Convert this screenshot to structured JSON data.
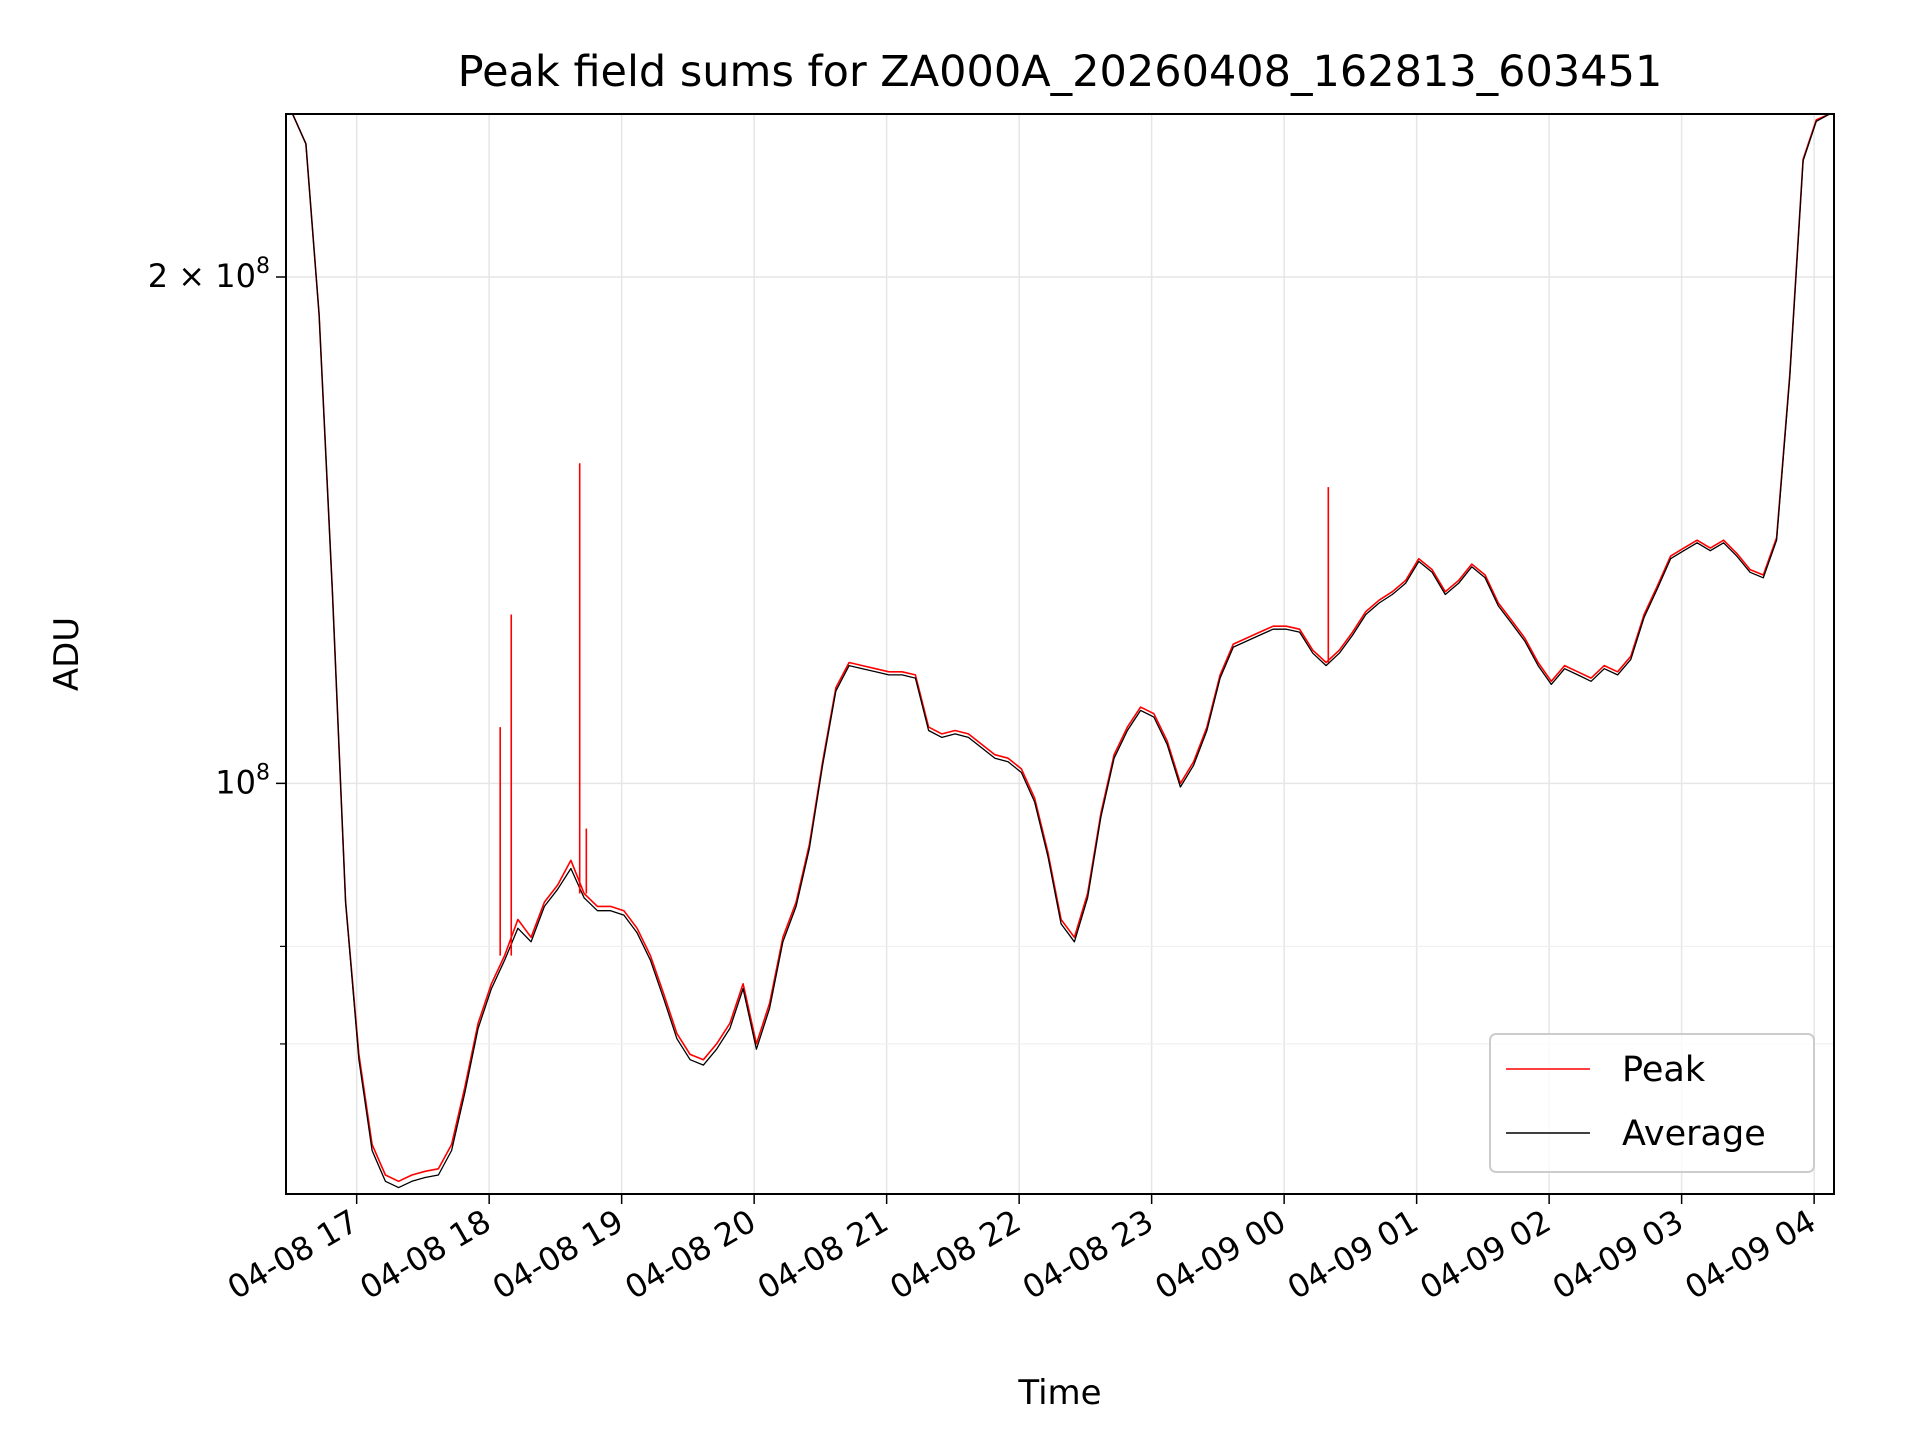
{
  "chart_data": {
    "type": "line",
    "title": "Peak field sums for ZA000A_20260408_162813_603451",
    "xlabel": "Time",
    "ylabel": "ADU",
    "y_scale": "log",
    "ylim": [
      57000000,
      250000000
    ],
    "xlim": [
      "04-08 16:28",
      "04-09 04:09"
    ],
    "grid": true,
    "legend_position": "lower-right",
    "x_ticks": [
      "04-08 17",
      "04-08 18",
      "04-08 19",
      "04-08 20",
      "04-08 21",
      "04-08 22",
      "04-08 23",
      "04-09 00",
      "04-09 01",
      "04-09 02",
      "04-09 03",
      "04-09 04"
    ],
    "y_ticks": [
      {
        "value": 100000000,
        "label": "10",
        "exp": "8"
      },
      {
        "value": 200000000,
        "label": "2 × 10",
        "exp": "8"
      }
    ],
    "y_minor_ticks": [
      70000000,
      80000000
    ],
    "x": [
      "04-08 16:31",
      "04-08 16:37",
      "04-08 16:43",
      "04-08 16:49",
      "04-08 16:55",
      "04-08 17:01",
      "04-08 17:07",
      "04-08 17:13",
      "04-08 17:19",
      "04-08 17:25",
      "04-08 17:31",
      "04-08 17:37",
      "04-08 17:43",
      "04-08 17:49",
      "04-08 17:55",
      "04-08 18:01",
      "04-08 18:07",
      "04-08 18:13",
      "04-08 18:19",
      "04-08 18:25",
      "04-08 18:31",
      "04-08 18:37",
      "04-08 18:43",
      "04-08 18:49",
      "04-08 18:55",
      "04-08 19:01",
      "04-08 19:07",
      "04-08 19:13",
      "04-08 19:19",
      "04-08 19:25",
      "04-08 19:31",
      "04-08 19:37",
      "04-08 19:43",
      "04-08 19:49",
      "04-08 19:55",
      "04-08 20:01",
      "04-08 20:07",
      "04-08 20:13",
      "04-08 20:19",
      "04-08 20:25",
      "04-08 20:31",
      "04-08 20:37",
      "04-08 20:43",
      "04-08 20:49",
      "04-08 20:55",
      "04-08 21:01",
      "04-08 21:07",
      "04-08 21:13",
      "04-08 21:19",
      "04-08 21:25",
      "04-08 21:31",
      "04-08 21:37",
      "04-08 21:43",
      "04-08 21:49",
      "04-08 21:55",
      "04-08 22:01",
      "04-08 22:07",
      "04-08 22:13",
      "04-08 22:19",
      "04-08 22:25",
      "04-08 22:31",
      "04-08 22:37",
      "04-08 22:43",
      "04-08 22:49",
      "04-08 22:55",
      "04-08 23:01",
      "04-08 23:07",
      "04-08 23:13",
      "04-08 23:19",
      "04-08 23:25",
      "04-08 23:31",
      "04-08 23:37",
      "04-08 23:43",
      "04-08 23:49",
      "04-08 23:55",
      "04-09 00:01",
      "04-09 00:07",
      "04-09 00:13",
      "04-09 00:19",
      "04-09 00:25",
      "04-09 00:31",
      "04-09 00:37",
      "04-09 00:43",
      "04-09 00:49",
      "04-09 00:55",
      "04-09 01:01",
      "04-09 01:07",
      "04-09 01:13",
      "04-09 01:19",
      "04-09 01:25",
      "04-09 01:31",
      "04-09 01:37",
      "04-09 01:43",
      "04-09 01:49",
      "04-09 01:55",
      "04-09 02:01",
      "04-09 02:07",
      "04-09 02:13",
      "04-09 02:19",
      "04-09 02:25",
      "04-09 02:31",
      "04-09 02:37",
      "04-09 02:43",
      "04-09 02:49",
      "04-09 02:55",
      "04-09 03:01",
      "04-09 03:07",
      "04-09 03:13",
      "04-09 03:19",
      "04-09 03:25",
      "04-09 03:31",
      "04-09 03:37",
      "04-09 03:43",
      "04-09 03:49",
      "04-09 03:55",
      "04-09 04:01",
      "04-09 04:07"
    ],
    "series": [
      {
        "name": "Peak",
        "color": "#ff0000",
        "values": [
          250000000,
          240000000,
          190000000,
          130000000,
          85000000,
          69000000,
          61000000,
          58500000,
          58000000,
          58500000,
          58800000,
          59000000,
          61000000,
          66000000,
          72000000,
          76000000,
          79000000,
          83000000,
          81000000,
          85000000,
          87000000,
          90000000,
          86000000,
          84500000,
          84500000,
          84000000,
          82000000,
          79000000,
          75000000,
          71000000,
          69000000,
          68500000,
          70000000,
          72000000,
          76000000,
          70000000,
          74000000,
          81000000,
          85000000,
          92000000,
          103000000,
          114000000,
          118000000,
          117500000,
          117000000,
          116500000,
          116500000,
          116000000,
          108000000,
          107000000,
          107500000,
          107000000,
          105500000,
          104000000,
          103500000,
          102000000,
          98000000,
          91000000,
          83000000,
          81000000,
          86000000,
          96000000,
          104000000,
          108000000,
          111000000,
          110000000,
          106000000,
          100000000,
          103000000,
          108000000,
          116000000,
          121000000,
          122000000,
          123000000,
          124000000,
          124000000,
          123500000,
          120000000,
          118000000,
          120000000,
          123000000,
          126500000,
          128500000,
          130000000,
          132000000,
          136000000,
          134000000,
          130000000,
          132000000,
          135000000,
          133000000,
          128000000,
          125000000,
          122000000,
          118000000,
          115000000,
          117500000,
          116500000,
          115500000,
          117500000,
          116500000,
          119000000,
          126000000,
          131000000,
          136500000,
          138000000,
          139500000,
          138000000,
          139500000,
          137000000,
          134000000,
          133000000,
          140000000,
          175000000,
          235000000,
          248000000,
          250000000
        ]
      },
      {
        "name": "Average",
        "color": "#000000",
        "values": [
          250000000,
          240000000,
          190000000,
          130000000,
          85000000,
          68500000,
          60500000,
          58000000,
          57500000,
          58000000,
          58300000,
          58500000,
          60500000,
          65500000,
          71500000,
          75500000,
          78500000,
          82000000,
          80500000,
          84500000,
          86500000,
          89000000,
          85500000,
          84000000,
          84000000,
          83500000,
          81500000,
          78500000,
          74500000,
          70500000,
          68500000,
          68000000,
          69500000,
          71500000,
          75500000,
          69500000,
          73500000,
          80500000,
          84500000,
          91500000,
          102500000,
          113500000,
          117500000,
          117000000,
          116500000,
          116000000,
          116000000,
          115500000,
          107500000,
          106500000,
          107000000,
          106500000,
          105000000,
          103500000,
          103000000,
          101500000,
          97500000,
          90500000,
          82500000,
          80500000,
          85500000,
          95500000,
          103500000,
          107500000,
          110500000,
          109500000,
          105500000,
          99500000,
          102500000,
          107500000,
          115500000,
          120500000,
          121500000,
          122500000,
          123500000,
          123500000,
          123000000,
          119500000,
          117500000,
          119500000,
          122500000,
          126000000,
          128000000,
          129500000,
          131500000,
          135500000,
          133500000,
          129500000,
          131500000,
          134500000,
          132500000,
          127500000,
          124500000,
          121500000,
          117500000,
          114500000,
          117000000,
          116000000,
          115000000,
          117000000,
          116000000,
          118500000,
          125500000,
          130500000,
          136000000,
          137500000,
          139000000,
          137500000,
          139000000,
          136500000,
          133500000,
          132500000,
          139500000,
          174500000,
          234500000,
          247500000,
          250000000
        ]
      }
    ],
    "spikes": [
      {
        "series": "Peak",
        "x": "04-08 18:05",
        "value": 108000000
      },
      {
        "series": "Peak",
        "x": "04-08 18:10",
        "value": 126000000
      },
      {
        "series": "Peak",
        "x": "04-08 18:41",
        "value": 155000000
      },
      {
        "series": "Peak",
        "x": "04-08 18:44",
        "value": 94000000
      },
      {
        "series": "Peak",
        "x": "04-09 00:20",
        "value": 150000000
      }
    ]
  }
}
